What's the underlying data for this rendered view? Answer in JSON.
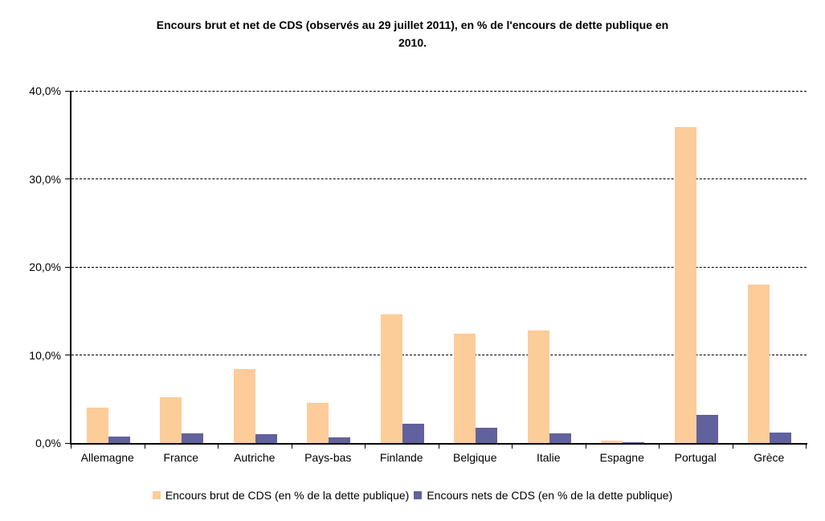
{
  "title": {
    "lines": [
      "Encours brut et net de CDS (observés au 29 juillet 2011), en % de l'encours de dette publique en",
      "2010."
    ]
  },
  "colors": {
    "brut_bar": "#FCCC99",
    "net_bar": "#61619D",
    "axis": "#000000",
    "gridline": "#000000",
    "background": "#FFFFFF"
  },
  "chart_data": {
    "type": "bar",
    "title": "Encours brut et net de CDS (observés au 29 juillet 2011), en % de l'encours de dette publique en 2010.",
    "categories": [
      "Allemagne",
      "France",
      "Autriche",
      "Pays-bas",
      "Finlande",
      "Belgique",
      "Italie",
      "Espagne",
      "Portugal",
      "Grèce"
    ],
    "series": [
      {
        "name": "Encours brut de CDS (en % de la dette publique)",
        "color": "#FCCC99",
        "values": [
          4.0,
          5.2,
          8.4,
          4.6,
          14.6,
          12.4,
          12.8,
          0.3,
          35.9,
          18.0
        ]
      },
      {
        "name": "Encours nets de CDS (en % de la dette publique)",
        "color": "#61619D",
        "values": [
          0.7,
          1.1,
          1.0,
          0.6,
          2.2,
          1.7,
          1.1,
          0.1,
          3.2,
          1.2
        ]
      }
    ],
    "xlabel": "",
    "ylabel": "",
    "ylim": [
      0,
      40
    ],
    "yticks": [
      0,
      10,
      20,
      30,
      40
    ],
    "ytick_labels": [
      "0,0%",
      "10,0%",
      "20,0%",
      "30,0%",
      "40,0%"
    ],
    "grid": "horizontal-dashed",
    "legend_position": "bottom"
  }
}
